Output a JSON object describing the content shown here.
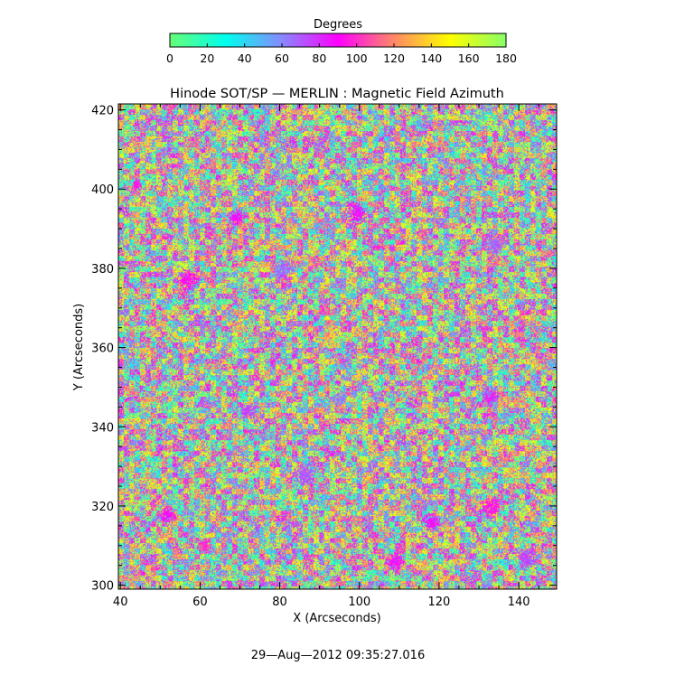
{
  "chart_data": {
    "type": "heatmap",
    "title": "Hinode SOT/SP — MERLIN : Magnetic Field Azimuth",
    "xlabel": "X (Arcseconds)",
    "ylabel": "Y (Arcseconds)",
    "xlim": [
      39.5,
      149.5
    ],
    "ylim": [
      299,
      421.5
    ],
    "x_ticks": [
      40,
      60,
      80,
      100,
      120,
      140
    ],
    "y_ticks": [
      300,
      320,
      340,
      360,
      380,
      400,
      420
    ],
    "colorbar": {
      "label": "Degrees",
      "range": [
        0,
        180
      ],
      "ticks": [
        0,
        20,
        40,
        60,
        80,
        100,
        120,
        140,
        160,
        180
      ],
      "colors": [
        "#66ff77",
        "#00ffee",
        "#8888ff",
        "#ff00ff",
        "#ff8866",
        "#ffff00",
        "#88ff66"
      ]
    },
    "timestamp": "29—Aug—2012 09:35:27.016",
    "field": {
      "description_values": "azimuth angles in degrees, 0-180, pixel noise with clustered patches",
      "patches": [
        {
          "x": 44,
          "y": 401,
          "angle": 95
        },
        {
          "x": 69,
          "y": 393,
          "angle": 90
        },
        {
          "x": 99,
          "y": 394,
          "angle": 85
        },
        {
          "x": 57,
          "y": 377,
          "angle": 92
        },
        {
          "x": 81,
          "y": 380,
          "angle": 65
        },
        {
          "x": 134,
          "y": 386,
          "angle": 70
        },
        {
          "x": 95,
          "y": 347,
          "angle": 65
        },
        {
          "x": 86,
          "y": 328,
          "angle": 70
        },
        {
          "x": 52,
          "y": 318,
          "angle": 90
        },
        {
          "x": 118,
          "y": 316,
          "angle": 88
        },
        {
          "x": 142,
          "y": 307,
          "angle": 75
        },
        {
          "x": 133,
          "y": 320,
          "angle": 95
        },
        {
          "x": 133,
          "y": 348,
          "angle": 80
        },
        {
          "x": 109,
          "y": 306,
          "angle": 85
        },
        {
          "x": 61,
          "y": 310,
          "angle": 100
        },
        {
          "x": 72,
          "y": 344,
          "angle": 75
        }
      ]
    }
  }
}
